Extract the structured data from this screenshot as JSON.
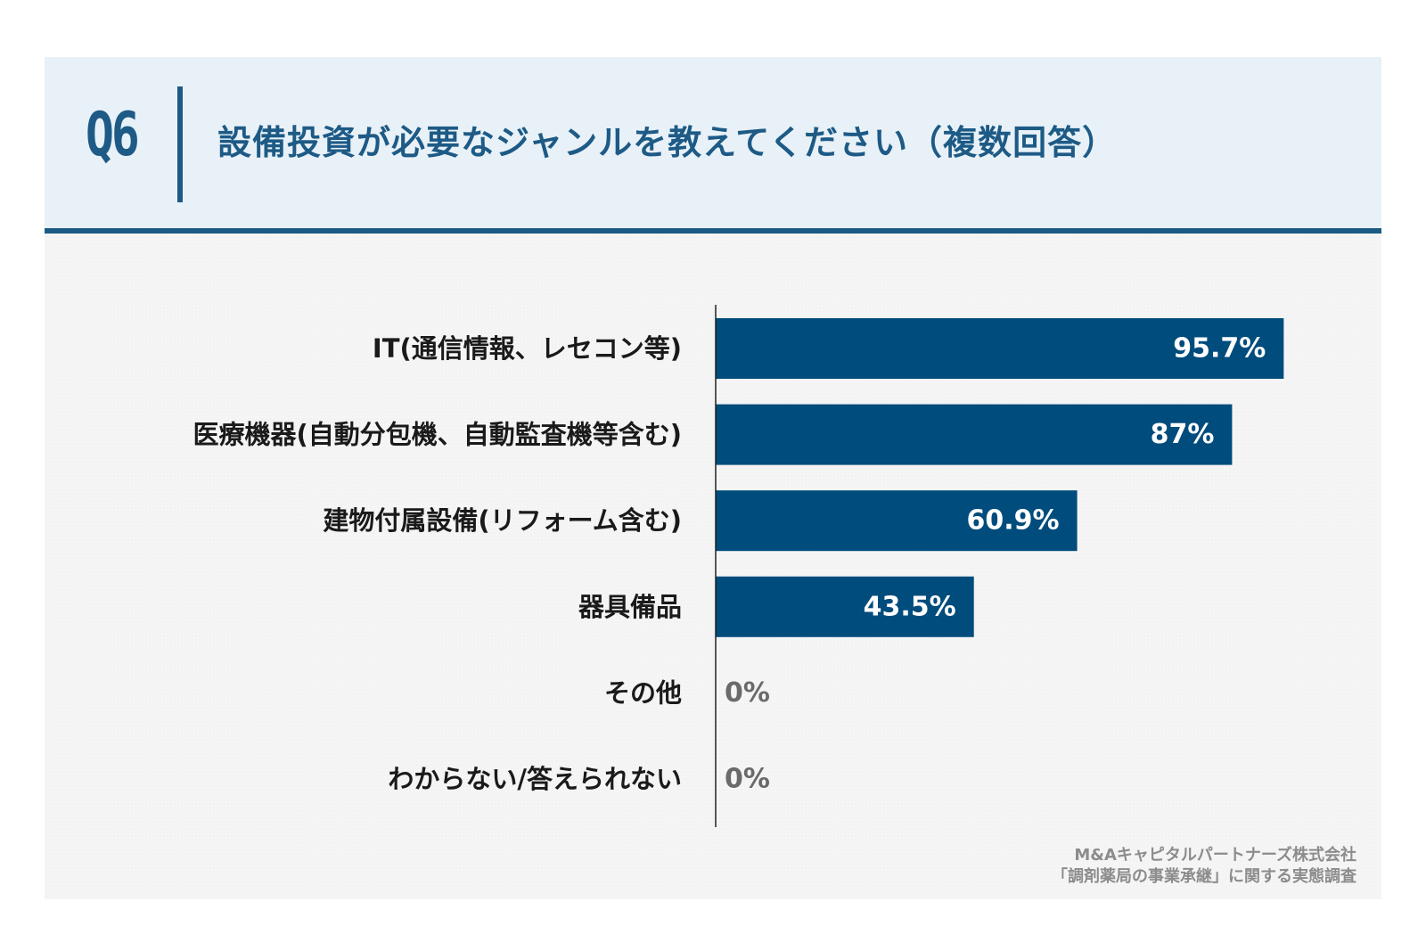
{
  "header": {
    "question_number": "Q6",
    "question_text": "設備投資が必要なジャンルを教えてください（複数回答）"
  },
  "colors": {
    "accent": "#1d5a86",
    "bar": "#004c7c",
    "header_bg": "#e8f1f7",
    "label_text": "#1a1a1a",
    "zero_value_text": "#6a6a6a",
    "source_text": "#8c8c8c"
  },
  "chart_data": {
    "type": "bar",
    "orientation": "horizontal",
    "title": "設備投資が必要なジャンルを教えてください（複数回答）",
    "categories": [
      "IT(通信情報、レセコン等)",
      "医療機器(自動分包機、自動監査機等含む)",
      "建物付属設備(リフォーム含む)",
      "器具備品",
      "その他",
      "わからない/答えられない"
    ],
    "values": [
      95.7,
      87,
      60.9,
      43.5,
      0,
      0
    ],
    "value_labels": [
      "95.7%",
      "87%",
      "60.9%",
      "43.5%",
      "0%",
      "0%"
    ],
    "unit": "%",
    "xlim": [
      0,
      100
    ],
    "grid": false,
    "legend": "none"
  },
  "source": {
    "line1": "M&Aキャピタルパートナーズ株式会社",
    "line2": "「調剤薬局の事業承継」に関する実態調査"
  }
}
